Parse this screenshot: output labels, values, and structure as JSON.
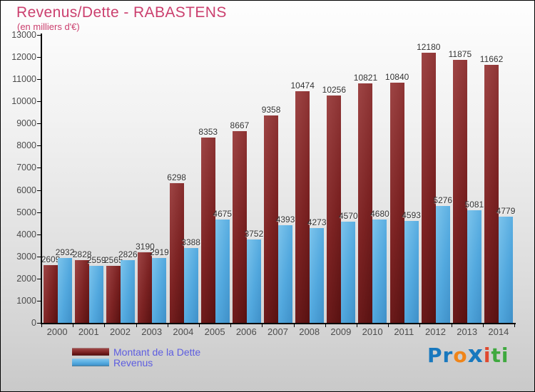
{
  "title": "Revenus/Dette - RABASTENS",
  "subtitle": "(en milliers d'€)",
  "chart_data": {
    "type": "bar",
    "title": "Revenus/Dette - RABASTENS",
    "subtitle": "(en milliers d'€)",
    "categories": [
      "2000",
      "2001",
      "2002",
      "2003",
      "2004",
      "2005",
      "2006",
      "2007",
      "2008",
      "2009",
      "2010",
      "2011",
      "2012",
      "2013",
      "2014"
    ],
    "series": [
      {
        "name": "Montant de la Dette",
        "color": "#7b2222",
        "values": [
          2609,
          2828,
          2565,
          3190,
          6298,
          8353,
          8667,
          9358,
          10474,
          10256,
          10821,
          10840,
          12180,
          11875,
          11662
        ]
      },
      {
        "name": "Revenus",
        "color": "#52a8de",
        "values": [
          2932,
          2559,
          2826,
          2919,
          3388,
          4675,
          3752,
          4393,
          4273,
          4570,
          4680,
          4593,
          5276,
          5081,
          4779
        ]
      }
    ],
    "ylim": [
      0,
      13000
    ],
    "ytick_step": 1000,
    "grid": false,
    "value_labels": true,
    "legend_position": "bottom-left",
    "xlabel": "",
    "ylabel": ""
  },
  "legend": {
    "text_color": "#5d5de0"
  },
  "logo": {
    "name": "Proxiti",
    "letters": [
      {
        "ch": "P",
        "color": "#1878be"
      },
      {
        "ch": "r",
        "color": "#1878be"
      },
      {
        "ch": "o",
        "color": "#f08519"
      },
      {
        "ch": "x",
        "color": "#1878be"
      },
      {
        "ch": "i",
        "color": "#e0482e"
      },
      {
        "ch": "t",
        "color": "#3fa93f"
      },
      {
        "ch": "i",
        "color": "#3fa93f"
      }
    ]
  },
  "colors": {
    "title": "#cb3f6e",
    "axis_text": "#4d4d4d",
    "value_label": "#333333",
    "dette_bar": "#7b2222",
    "revenus_bar": "#52a8de",
    "legend_text": "#5d5de0"
  }
}
